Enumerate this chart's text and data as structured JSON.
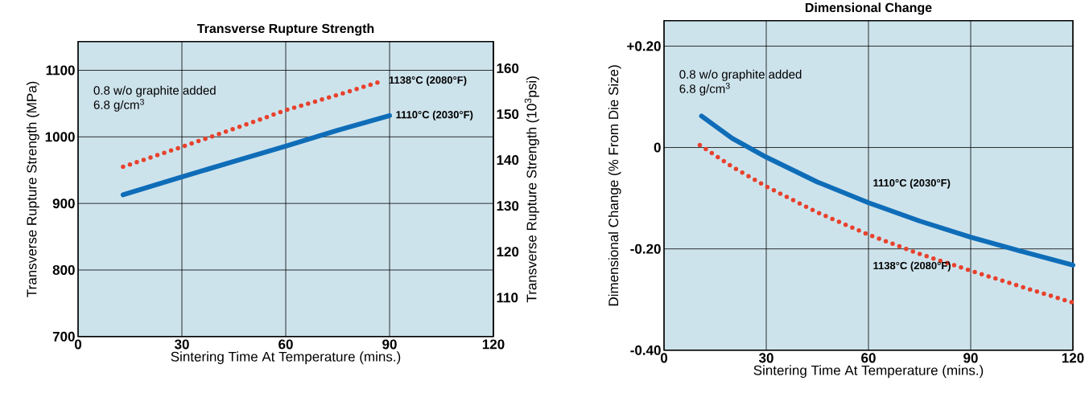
{
  "chart_data": [
    {
      "type": "line",
      "title": "Transverse Rupture Strength",
      "xlabel": "Sintering Time At Temperature (mins.)",
      "ylabel": "Transverse Rupture Strength (MPa)",
      "y2label": "Transverse Rupture Strength (10$^{3}$psi)",
      "annotations": [
        "0.8 w/o graphite added",
        "6.8 g/cm$^{3}$"
      ],
      "xlim": [
        0,
        120
      ],
      "xticks": [
        0,
        30,
        60,
        90,
        120
      ],
      "ylim": [
        700,
        1143
      ],
      "yticks": [
        700,
        800,
        900,
        1000,
        1100
      ],
      "y2lim": [
        101.5,
        165.8
      ],
      "y2ticks": [
        110,
        120,
        130,
        140,
        150,
        160
      ],
      "grid": true,
      "marker": "none",
      "series": [
        {
          "name": "1138°C (2080°F)",
          "color": "#e8412c",
          "line_style": "dotted",
          "x": [
            13,
            30,
            45,
            60,
            75,
            88
          ],
          "values": [
            955,
            985,
            1012,
            1040,
            1063,
            1084
          ]
        },
        {
          "name": "1110°C (2030°F)",
          "color": "#0f6db8",
          "line_style": "solid",
          "x": [
            13,
            30,
            45,
            60,
            75,
            90
          ],
          "values": [
            913,
            940,
            963,
            986,
            1010,
            1032
          ]
        }
      ]
    },
    {
      "type": "line",
      "title": "Dimensional Change",
      "xlabel": "Sintering Time At Temperature (mins.)",
      "ylabel": "Dimensional Change (% From Die Size)",
      "annotations": [
        "0.8 w/o graphite added",
        "6.8 g/cm$^{3}$"
      ],
      "xlim": [
        0,
        120
      ],
      "xticks": [
        0,
        30,
        60,
        90,
        120
      ],
      "ylim": [
        -0.4,
        0.25
      ],
      "yticks": [
        {
          "value": 0.2,
          "label": "+0.20"
        },
        0,
        {
          "value": -0.2,
          "label": "-0.20"
        },
        {
          "value": -0.4,
          "label": "-0.40"
        }
      ],
      "grid": true,
      "marker": "none",
      "series": [
        {
          "name": "1110°C (2030°F)",
          "color": "#0f6db8",
          "line_style": "solid",
          "x": [
            11,
            20,
            30,
            45,
            60,
            75,
            90,
            105,
            120
          ],
          "values": [
            0.062,
            0.018,
            -0.019,
            -0.068,
            -0.109,
            -0.145,
            -0.177,
            -0.205,
            -0.232
          ]
        },
        {
          "name": "1138°C (2080°F)",
          "color": "#e8412c",
          "line_style": "dotted",
          "x": [
            10.5,
            20,
            30,
            45,
            60,
            75,
            90,
            105,
            120
          ],
          "values": [
            0.005,
            -0.038,
            -0.077,
            -0.128,
            -0.172,
            -0.21,
            -0.243,
            -0.275,
            -0.306
          ]
        }
      ]
    }
  ]
}
